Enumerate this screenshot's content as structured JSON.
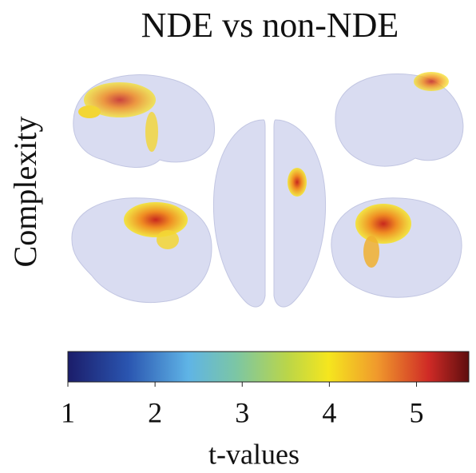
{
  "title": "NDE vs non-NDE",
  "row_label": "Complexity",
  "colorbar": {
    "label": "t-values",
    "lim": [
      1,
      5.6
    ],
    "ticks": [
      1,
      2,
      3,
      4,
      5
    ]
  }
}
